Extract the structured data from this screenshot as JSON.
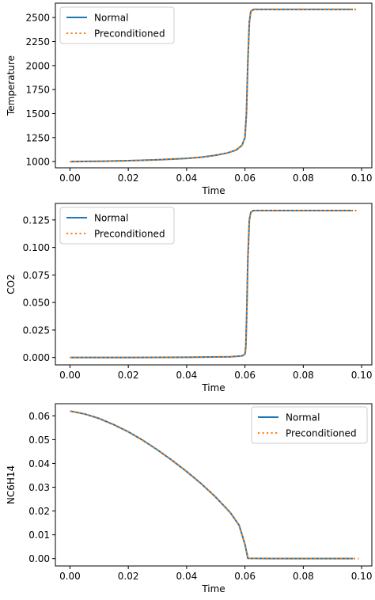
{
  "chart_data": [
    {
      "type": "line",
      "title": "",
      "xlabel": "Time",
      "ylabel": "Temperature",
      "xlim": [
        -0.005,
        0.1035
      ],
      "ylim": [
        935,
        2650
      ],
      "xticks": [
        0.0,
        0.02,
        0.04,
        0.06,
        0.08,
        0.1
      ],
      "xtick_labels": [
        "0.00",
        "0.02",
        "0.04",
        "0.06",
        "0.08",
        "0.10"
      ],
      "yticks": [
        1000,
        1250,
        1500,
        1750,
        2000,
        2250,
        2500
      ],
      "ytick_labels": [
        "1000",
        "1250",
        "1500",
        "1750",
        "2000",
        "2250",
        "2500"
      ],
      "legend_position": "upper left",
      "grid": false,
      "series": [
        {
          "name": "Normal",
          "color": "#1f77b4",
          "style": "solid",
          "x": [
            0.0,
            0.01,
            0.02,
            0.03,
            0.04,
            0.045,
            0.05,
            0.054,
            0.057,
            0.059,
            0.06,
            0.0605,
            0.061,
            0.0615,
            0.062,
            0.063,
            0.07,
            0.08,
            0.09,
            0.097
          ],
          "y": [
            1000,
            1003,
            1009,
            1018,
            1033,
            1045,
            1066,
            1090,
            1120,
            1170,
            1250,
            1500,
            2050,
            2450,
            2565,
            2585,
            2585,
            2585,
            2585,
            2585
          ]
        },
        {
          "name": "Preconditioned",
          "color": "#ff7f0e",
          "style": "dotted",
          "x": [
            0.0,
            0.01,
            0.02,
            0.03,
            0.04,
            0.045,
            0.05,
            0.054,
            0.057,
            0.059,
            0.06,
            0.0605,
            0.061,
            0.0615,
            0.062,
            0.063,
            0.07,
            0.08,
            0.09,
            0.099
          ],
          "y": [
            1000,
            1003,
            1009,
            1018,
            1033,
            1045,
            1066,
            1090,
            1120,
            1170,
            1250,
            1500,
            2050,
            2450,
            2565,
            2585,
            2585,
            2585,
            2585,
            2585
          ]
        }
      ]
    },
    {
      "type": "line",
      "title": "",
      "xlabel": "Time",
      "ylabel": "CO2",
      "xlim": [
        -0.005,
        0.1035
      ],
      "ylim": [
        -0.0067,
        0.14
      ],
      "xticks": [
        0.0,
        0.02,
        0.04,
        0.06,
        0.08,
        0.1
      ],
      "xtick_labels": [
        "0.00",
        "0.02",
        "0.04",
        "0.06",
        "0.08",
        "0.10"
      ],
      "yticks": [
        0.0,
        0.025,
        0.05,
        0.075,
        0.1,
        0.125
      ],
      "ytick_labels": [
        "0.000",
        "0.025",
        "0.050",
        "0.075",
        "0.100",
        "0.125"
      ],
      "legend_position": "upper left",
      "grid": false,
      "series": [
        {
          "name": "Normal",
          "color": "#1f77b4",
          "style": "solid",
          "x": [
            0.0,
            0.02,
            0.04,
            0.055,
            0.059,
            0.06,
            0.0603,
            0.0606,
            0.061,
            0.0615,
            0.062,
            0.063,
            0.07,
            0.08,
            0.097
          ],
          "y": [
            0.0,
            0.0,
            0.0002,
            0.0007,
            0.0015,
            0.003,
            0.01,
            0.04,
            0.09,
            0.125,
            0.132,
            0.1335,
            0.1335,
            0.1335,
            0.1335
          ]
        },
        {
          "name": "Preconditioned",
          "color": "#ff7f0e",
          "style": "dotted",
          "x": [
            0.0,
            0.02,
            0.04,
            0.055,
            0.059,
            0.06,
            0.0603,
            0.0606,
            0.061,
            0.0615,
            0.062,
            0.063,
            0.07,
            0.08,
            0.099
          ],
          "y": [
            0.0,
            0.0,
            0.0002,
            0.0007,
            0.0015,
            0.003,
            0.01,
            0.04,
            0.09,
            0.125,
            0.132,
            0.1335,
            0.1335,
            0.1335,
            0.1335
          ]
        }
      ]
    },
    {
      "type": "line",
      "title": "",
      "xlabel": "Time",
      "ylabel": "NC6H14",
      "xlim": [
        -0.005,
        0.1035
      ],
      "ylim": [
        -0.0031,
        0.0651
      ],
      "xticks": [
        0.0,
        0.02,
        0.04,
        0.06,
        0.08,
        0.1
      ],
      "xtick_labels": [
        "0.00",
        "0.02",
        "0.04",
        "0.06",
        "0.08",
        "0.10"
      ],
      "yticks": [
        0.0,
        0.01,
        0.02,
        0.03,
        0.04,
        0.05,
        0.06
      ],
      "ytick_labels": [
        "0.00",
        "0.01",
        "0.02",
        "0.03",
        "0.04",
        "0.05",
        "0.06"
      ],
      "legend_position": "upper right",
      "grid": false,
      "series": [
        {
          "name": "Normal",
          "color": "#1f77b4",
          "style": "solid",
          "x": [
            0.0,
            0.005,
            0.01,
            0.015,
            0.02,
            0.025,
            0.03,
            0.035,
            0.04,
            0.045,
            0.05,
            0.055,
            0.058,
            0.06,
            0.061,
            0.07,
            0.08,
            0.09,
            0.097
          ],
          "y": [
            0.062,
            0.0608,
            0.0589,
            0.0563,
            0.0533,
            0.0497,
            0.0457,
            0.0413,
            0.0366,
            0.0315,
            0.0258,
            0.0193,
            0.014,
            0.006,
            0.0001,
            0.0,
            0.0,
            0.0,
            0.0
          ]
        },
        {
          "name": "Preconditioned",
          "color": "#ff7f0e",
          "style": "dotted",
          "x": [
            0.0,
            0.005,
            0.01,
            0.015,
            0.02,
            0.025,
            0.03,
            0.035,
            0.04,
            0.045,
            0.05,
            0.055,
            0.058,
            0.06,
            0.061,
            0.07,
            0.08,
            0.09,
            0.099
          ],
          "y": [
            0.062,
            0.0608,
            0.0589,
            0.0563,
            0.0533,
            0.0497,
            0.0457,
            0.0413,
            0.0366,
            0.0315,
            0.0258,
            0.0193,
            0.014,
            0.006,
            0.0001,
            0.0,
            0.0,
            0.0,
            0.0
          ]
        }
      ]
    }
  ]
}
